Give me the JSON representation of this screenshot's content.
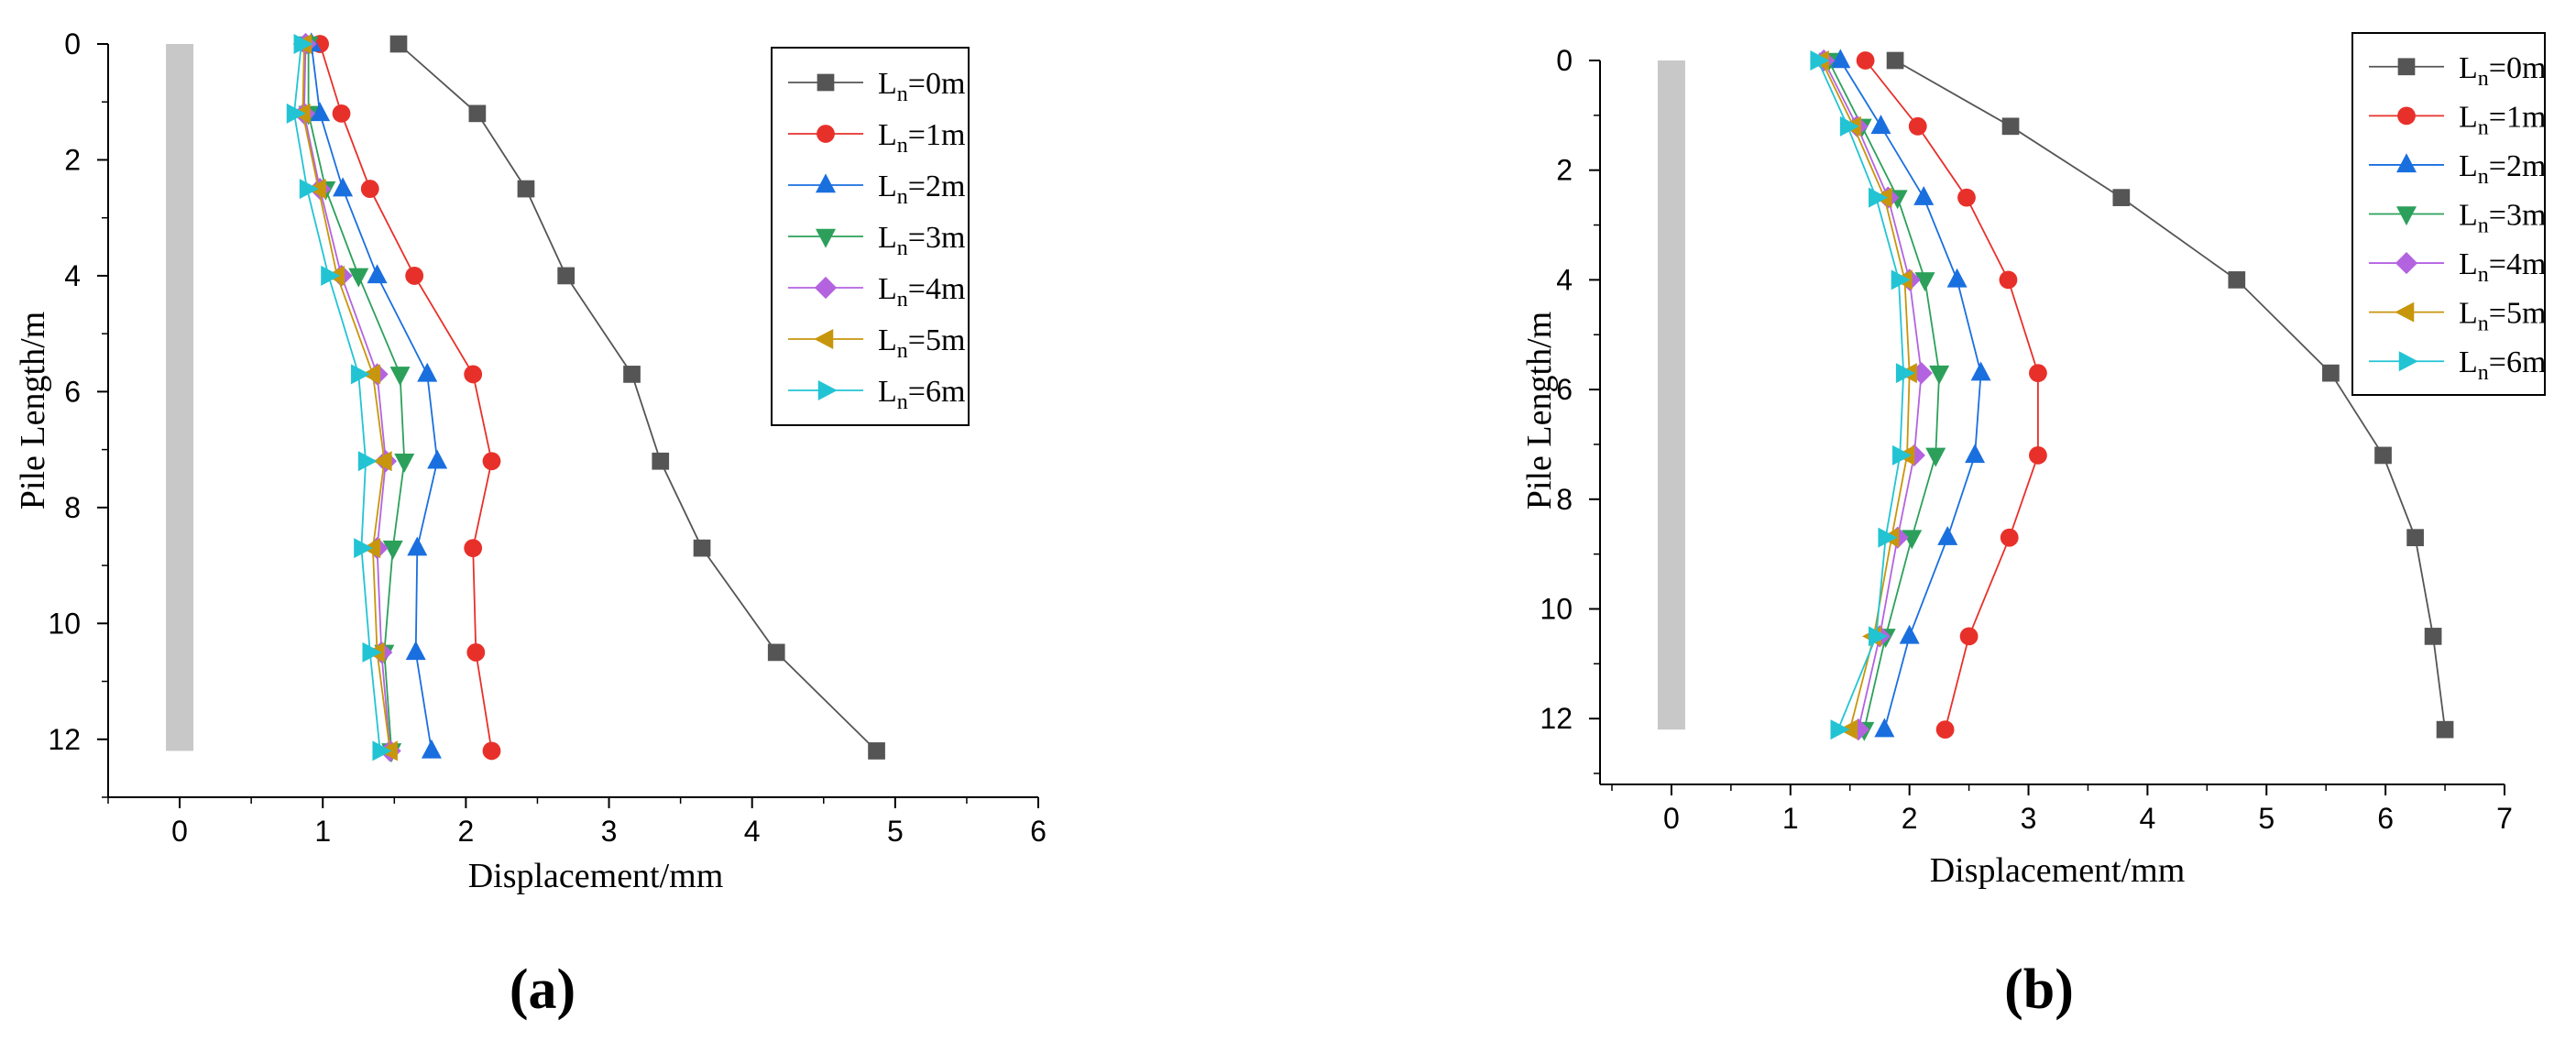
{
  "chart_data": [
    {
      "type": "line",
      "panel_label": "(a)",
      "xlabel": "Displacement/mm",
      "ylabel": "Pile Length/m",
      "xlim": [
        -0.5,
        6
      ],
      "ylim": [
        0,
        13
      ],
      "y_inverted": true,
      "x_ticks": [
        "0",
        "1",
        "2",
        "3",
        "4",
        "5",
        "6"
      ],
      "y_ticks": [
        "0",
        "2",
        "4",
        "6",
        "8",
        "10",
        "12"
      ],
      "pile": {
        "x": 0,
        "y_top": 0,
        "y_bottom": 12.2,
        "color": "#c8c8c8"
      },
      "legend_position": "top-right",
      "depths": [
        0,
        1.2,
        2.5,
        4.0,
        5.7,
        7.2,
        8.7,
        10.5,
        12.2
      ],
      "series": [
        {
          "name": "L",
          "sub": "n",
          "suffix": "=0m",
          "color": "#555555",
          "marker": "square",
          "points": [
            [
              1.53,
              0
            ],
            [
              2.08,
              1.2
            ],
            [
              2.42,
              2.5
            ],
            [
              2.7,
              4.0
            ],
            [
              3.16,
              5.7
            ],
            [
              3.36,
              7.2
            ],
            [
              3.65,
              8.7
            ],
            [
              4.17,
              10.5
            ],
            [
              4.87,
              12.2
            ]
          ]
        },
        {
          "name": "L",
          "sub": "n",
          "suffix": "=1m",
          "color": "#e8302a",
          "marker": "circle",
          "points": [
            [
              0.98,
              0
            ],
            [
              1.13,
              1.2
            ],
            [
              1.33,
              2.5
            ],
            [
              1.64,
              4.0
            ],
            [
              2.05,
              5.7
            ],
            [
              2.18,
              7.2
            ],
            [
              2.05,
              8.7
            ],
            [
              2.07,
              10.5
            ],
            [
              2.18,
              12.2
            ]
          ]
        },
        {
          "name": "L",
          "sub": "n",
          "suffix": "=2m",
          "color": "#1a6fdf",
          "marker": "triangle-up",
          "points": [
            [
              0.92,
              0
            ],
            [
              0.98,
              1.2
            ],
            [
              1.14,
              2.5
            ],
            [
              1.38,
              4.0
            ],
            [
              1.73,
              5.7
            ],
            [
              1.8,
              7.2
            ],
            [
              1.66,
              8.7
            ],
            [
              1.65,
              10.5
            ],
            [
              1.76,
              12.2
            ]
          ]
        },
        {
          "name": "L",
          "sub": "n",
          "suffix": "=3m",
          "color": "#2ca05a",
          "marker": "triangle-down",
          "points": [
            [
              0.9,
              0
            ],
            [
              0.9,
              1.2
            ],
            [
              1.02,
              2.5
            ],
            [
              1.25,
              4.0
            ],
            [
              1.54,
              5.7
            ],
            [
              1.57,
              7.2
            ],
            [
              1.49,
              8.7
            ],
            [
              1.43,
              10.5
            ],
            [
              1.48,
              12.2
            ]
          ]
        },
        {
          "name": "L",
          "sub": "n",
          "suffix": "=4m",
          "color": "#b463e0",
          "marker": "diamond",
          "points": [
            [
              0.88,
              0
            ],
            [
              0.87,
              1.2
            ],
            [
              0.98,
              2.5
            ],
            [
              1.13,
              4.0
            ],
            [
              1.38,
              5.7
            ],
            [
              1.44,
              7.2
            ],
            [
              1.38,
              8.7
            ],
            [
              1.41,
              10.5
            ],
            [
              1.47,
              12.2
            ]
          ]
        },
        {
          "name": "L",
          "sub": "n",
          "suffix": "=5m",
          "color": "#c8960c",
          "marker": "triangle-left",
          "points": [
            [
              0.87,
              0
            ],
            [
              0.86,
              1.2
            ],
            [
              0.97,
              2.5
            ],
            [
              1.1,
              4.0
            ],
            [
              1.35,
              5.7
            ],
            [
              1.43,
              7.2
            ],
            [
              1.35,
              8.7
            ],
            [
              1.38,
              10.5
            ],
            [
              1.47,
              12.2
            ]
          ]
        },
        {
          "name": "L",
          "sub": "n",
          "suffix": "=6m",
          "color": "#22c4d4",
          "marker": "triangle-right",
          "points": [
            [
              0.85,
              0
            ],
            [
              0.8,
              1.2
            ],
            [
              0.89,
              2.5
            ],
            [
              1.04,
              4.0
            ],
            [
              1.25,
              5.7
            ],
            [
              1.3,
              7.2
            ],
            [
              1.27,
              8.7
            ],
            [
              1.33,
              10.5
            ],
            [
              1.4,
              12.2
            ]
          ]
        }
      ]
    },
    {
      "type": "line",
      "panel_label": "(b)",
      "xlabel": "Displacement/mm",
      "ylabel": "Pile Length/m",
      "xlim": [
        -0.6,
        7
      ],
      "ylim": [
        0,
        13.2
      ],
      "y_inverted": true,
      "x_ticks": [
        "0",
        "1",
        "2",
        "3",
        "4",
        "5",
        "6",
        "7"
      ],
      "y_ticks": [
        "0",
        "2",
        "4",
        "6",
        "8",
        "10",
        "12"
      ],
      "pile": {
        "x": 0,
        "y_top": 0,
        "y_bottom": 12.2,
        "color": "#c8c8c8"
      },
      "legend_position": "top-right",
      "depths": [
        0,
        1.2,
        2.5,
        4.0,
        5.7,
        7.2,
        8.7,
        10.5,
        12.2
      ],
      "series": [
        {
          "name": "L",
          "sub": "n",
          "suffix": "=0m",
          "color": "#555555",
          "marker": "square",
          "points": [
            [
              1.88,
              0
            ],
            [
              2.85,
              1.2
            ],
            [
              3.78,
              2.5
            ],
            [
              4.75,
              4.0
            ],
            [
              5.54,
              5.7
            ],
            [
              5.98,
              7.2
            ],
            [
              6.25,
              8.7
            ],
            [
              6.4,
              10.5
            ],
            [
              6.5,
              12.2
            ]
          ]
        },
        {
          "name": "L",
          "sub": "n",
          "suffix": "=1m",
          "color": "#e8302a",
          "marker": "circle",
          "points": [
            [
              1.63,
              0
            ],
            [
              2.07,
              1.2
            ],
            [
              2.48,
              2.5
            ],
            [
              2.83,
              4.0
            ],
            [
              3.08,
              5.7
            ],
            [
              3.08,
              7.2
            ],
            [
              2.84,
              8.7
            ],
            [
              2.5,
              10.5
            ],
            [
              2.3,
              12.2
            ]
          ]
        },
        {
          "name": "L",
          "sub": "n",
          "suffix": "=2m",
          "color": "#1a6fdf",
          "marker": "triangle-up",
          "points": [
            [
              1.42,
              0
            ],
            [
              1.76,
              1.2
            ],
            [
              2.12,
              2.5
            ],
            [
              2.4,
              4.0
            ],
            [
              2.6,
              5.7
            ],
            [
              2.55,
              7.2
            ],
            [
              2.32,
              8.7
            ],
            [
              2.0,
              10.5
            ],
            [
              1.79,
              12.2
            ]
          ]
        },
        {
          "name": "L",
          "sub": "n",
          "suffix": "=3m",
          "color": "#2ca05a",
          "marker": "triangle-down",
          "points": [
            [
              1.32,
              0
            ],
            [
              1.6,
              1.2
            ],
            [
              1.9,
              2.5
            ],
            [
              2.13,
              4.0
            ],
            [
              2.25,
              5.7
            ],
            [
              2.22,
              7.2
            ],
            [
              2.02,
              8.7
            ],
            [
              1.8,
              10.5
            ],
            [
              1.62,
              12.2
            ]
          ]
        },
        {
          "name": "L",
          "sub": "n",
          "suffix": "=4m",
          "color": "#b463e0",
          "marker": "diamond",
          "points": [
            [
              1.28,
              0
            ],
            [
              1.56,
              1.2
            ],
            [
              1.82,
              2.5
            ],
            [
              2.0,
              4.0
            ],
            [
              2.1,
              5.7
            ],
            [
              2.04,
              7.2
            ],
            [
              1.9,
              8.7
            ],
            [
              1.75,
              10.5
            ],
            [
              1.57,
              12.2
            ]
          ]
        },
        {
          "name": "L",
          "sub": "n",
          "suffix": "=5m",
          "color": "#c8960c",
          "marker": "triangle-left",
          "points": [
            [
              1.26,
              0
            ],
            [
              1.53,
              1.2
            ],
            [
              1.79,
              2.5
            ],
            [
              1.96,
              4.0
            ],
            [
              2.0,
              5.7
            ],
            [
              1.98,
              7.2
            ],
            [
              1.85,
              8.7
            ],
            [
              1.7,
              10.5
            ],
            [
              1.5,
              12.2
            ]
          ]
        },
        {
          "name": "L",
          "sub": "n",
          "suffix": "=6m",
          "color": "#22c4d4",
          "marker": "triangle-right",
          "points": [
            [
              1.23,
              0
            ],
            [
              1.48,
              1.2
            ],
            [
              1.72,
              2.5
            ],
            [
              1.91,
              4.0
            ],
            [
              1.95,
              5.7
            ],
            [
              1.92,
              7.2
            ],
            [
              1.8,
              8.7
            ],
            [
              1.72,
              10.5
            ],
            [
              1.4,
              12.2
            ]
          ]
        }
      ]
    }
  ]
}
